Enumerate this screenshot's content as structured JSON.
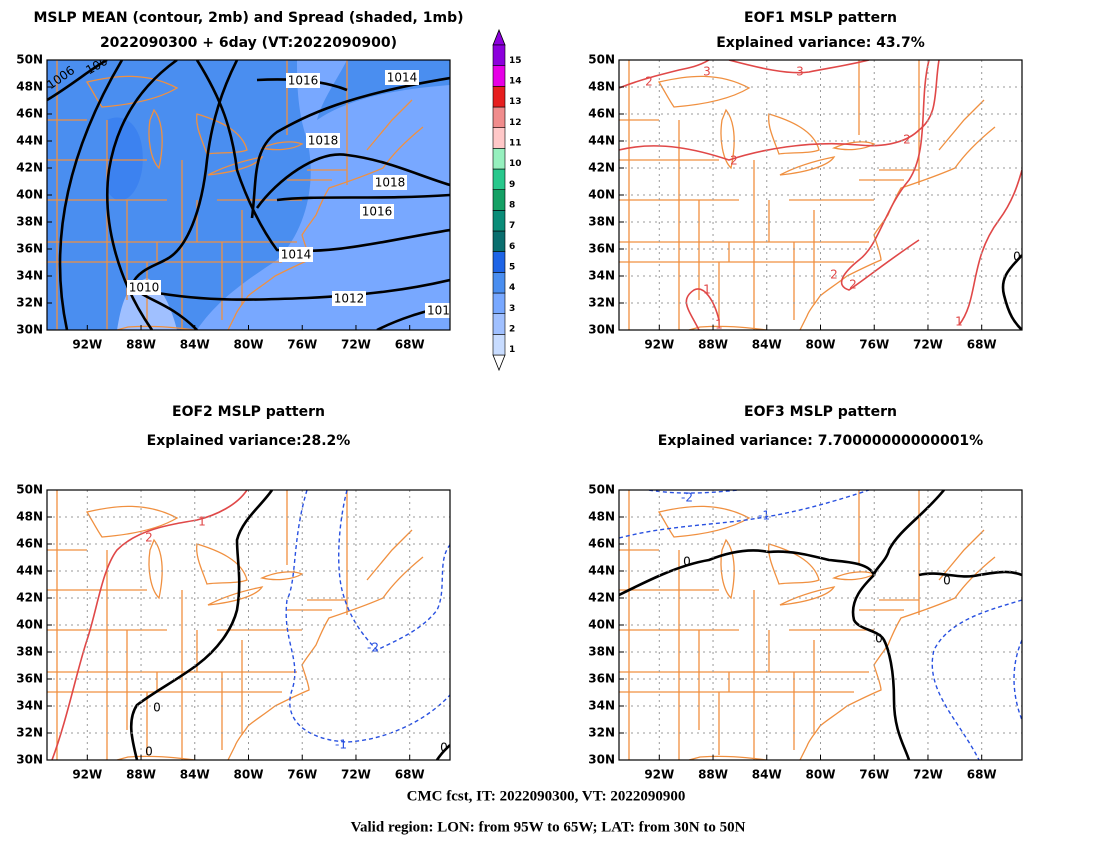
{
  "panels": [
    {
      "title": "MSLP MEAN (contour, 2mb) and Spread (shaded, 1mb)",
      "subtitle": "2022090300 + 6day (VT:2022090900)",
      "contour_labels": [
        "1006",
        "100",
        "1016",
        "1014",
        "1018",
        "1018",
        "1016",
        "1014",
        "1010",
        "1012",
        "101"
      ]
    },
    {
      "title": "EOF1 MSLP pattern",
      "subtitle": "Explained variance: 43.7%",
      "contour_labels": [
        "2",
        "3",
        "3",
        "2",
        "2",
        "2",
        "2",
        "1",
        "1",
        "1",
        "0"
      ]
    },
    {
      "title": "EOF2 MSLP pattern",
      "subtitle": "Explained variance:28.2%",
      "contour_labels": [
        "1",
        "2",
        "0",
        "0",
        "-2",
        "-1",
        "0"
      ]
    },
    {
      "title": "EOF3 MSLP pattern",
      "subtitle": "Explained variance: 7.70000000000001%",
      "contour_labels": [
        "-2",
        "-1",
        "0",
        "0",
        "0"
      ]
    }
  ],
  "axes": {
    "lat_labels": [
      "50N",
      "48N",
      "46N",
      "44N",
      "42N",
      "40N",
      "38N",
      "36N",
      "34N",
      "32N",
      "30N"
    ],
    "lon_labels": [
      "92W",
      "88W",
      "84W",
      "80W",
      "76W",
      "72W",
      "68W"
    ]
  },
  "colorbar": {
    "levels": [
      1,
      2,
      3,
      4,
      5,
      6,
      7,
      8,
      9,
      10,
      11,
      12,
      13,
      14,
      15
    ],
    "colors": [
      "#c8dcff",
      "#a0c0ff",
      "#78a8ff",
      "#4a8ef0",
      "#1e64e6",
      "#0a6e6e",
      "#0a8c78",
      "#14a064",
      "#28c88c",
      "#96f0be",
      "#ffc8c8",
      "#f08c8c",
      "#e61e1e",
      "#e600e6",
      "#8c00dc"
    ]
  },
  "footer": {
    "line1": "CMC fcst, IT: 2022090300, VT: 2022090900",
    "line2": "Valid region: LON: from 95W to 65W; LAT: from 30N to 50N"
  }
}
